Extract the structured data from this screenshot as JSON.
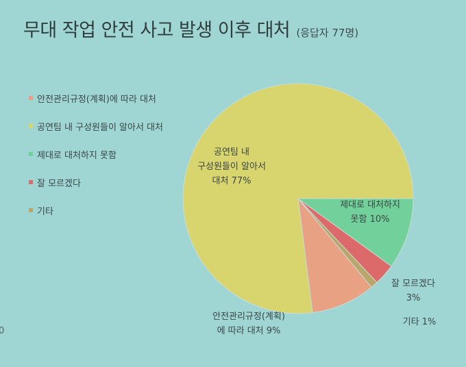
{
  "header": {
    "title": "무대 작업 안전 사고 발생 이후 대처",
    "subtitle": "(응답자 77명)"
  },
  "edge_text": "0",
  "chart_data": {
    "type": "pie",
    "title": "무대 작업 안전 사고 발생 이후 대처",
    "subtitle": "(응답자 77명)",
    "legend_position": "left",
    "slices": [
      {
        "label": "안전관리규정(계획)에 따라 대처",
        "value": 9,
        "color": "#e8a283",
        "data_label": [
          "안전관리규정(계획)",
          "에 따라 대처 9%"
        ]
      },
      {
        "label": "공연팀 내 구성원들이 알아서 대처",
        "value": 77,
        "color": "#d9d56e",
        "data_label": [
          "공연팀 내",
          "구성원들이 알아서",
          "대처 77%"
        ]
      },
      {
        "label": "제대로 대처하지 못함",
        "value": 10,
        "color": "#72d19a",
        "data_label": [
          "제대로 대처하지",
          "못함 10%"
        ]
      },
      {
        "label": "잘 모르겠다",
        "value": 3,
        "color": "#dd6a6a",
        "data_label": [
          "잘 모르겠다",
          "3%"
        ]
      },
      {
        "label": "기타",
        "value": 1,
        "color": "#b9a66a",
        "data_label": [
          "기타 1%"
        ]
      }
    ]
  }
}
